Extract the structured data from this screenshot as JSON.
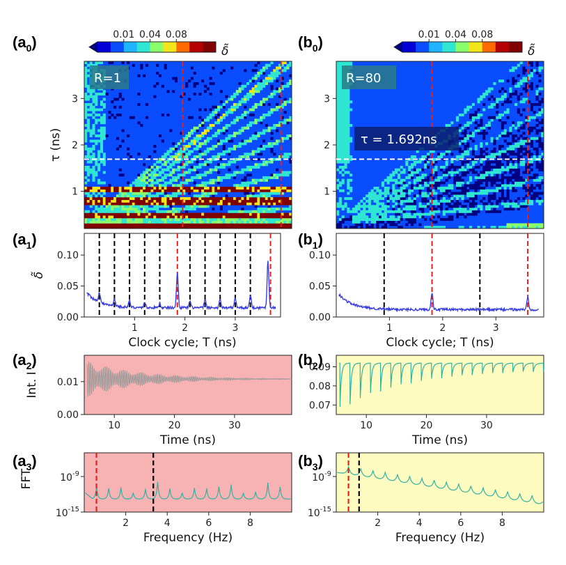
{
  "panel_labels": {
    "a0": {
      "main": "(a",
      "sub": "0",
      "close": ")"
    },
    "b0": {
      "main": "(b",
      "sub": "0",
      "close": ")"
    },
    "a1": {
      "main": "(a",
      "sub": "1",
      "close": ")"
    },
    "b1": {
      "main": "(b",
      "sub": "1",
      "close": ")"
    },
    "a2": {
      "main": "(a",
      "sub": "2",
      "close": ")"
    },
    "b2": {
      "main": "(b",
      "sub": "2",
      "close": ")"
    },
    "a3": {
      "main": "(a",
      "sub": "3",
      "close": ")"
    },
    "b3": {
      "main": "(b",
      "sub": "3",
      "close": ")"
    }
  },
  "colorbar": {
    "ticks": [
      "0.01",
      "0.04",
      "0.08"
    ],
    "label": "δ̃",
    "colors": [
      "#000080",
      "#0000d6",
      "#0a4cff",
      "#1eb4ff",
      "#2ee6d2",
      "#8cff6c",
      "#f2e51c",
      "#ff6a00",
      "#b40000",
      "#800000"
    ]
  },
  "chart_data": [
    {
      "id": "a0",
      "type": "heatmap",
      "annotation": "R=1",
      "ylabel": "τ (ns)",
      "yticks": [
        "1",
        "2",
        "3"
      ],
      "ylim": [
        0.2,
        3.8
      ],
      "xlim": [
        0,
        3.9
      ],
      "red_dashed_x": [
        1.85,
        3.7
      ],
      "white_dashed_y": 1.692
    },
    {
      "id": "b0",
      "type": "heatmap",
      "annotation": "R=80",
      "annotation2": "τ = 1.692ns",
      "yticks": [
        "1",
        "2",
        "3"
      ],
      "ylim": [
        0.2,
        3.8
      ],
      "xlim": [
        0,
        3.9
      ],
      "red_dashed_x": [
        1.8,
        3.6
      ],
      "white_dashed_y": 1.692
    },
    {
      "id": "a1",
      "type": "line",
      "ylabel": "δ̃",
      "xlabel": "Clock cycle; T (ns)",
      "xticks": [
        "1",
        "2",
        "3"
      ],
      "yticks": [
        "0.00",
        "0.05",
        "0.10"
      ],
      "xlim": [
        0,
        3.9
      ],
      "ylim": [
        0,
        0.135
      ],
      "black_dashed_x": [
        0.3,
        0.6,
        0.9,
        1.2,
        1.5,
        2.1,
        2.4,
        2.7,
        3.0,
        3.3
      ],
      "red_dashed_x": [
        1.85,
        3.7
      ],
      "baseline": 0.015,
      "peaks": [
        {
          "x": 0.3,
          "h": 0.017
        },
        {
          "x": 0.6,
          "h": 0.012
        },
        {
          "x": 0.9,
          "h": 0.01
        },
        {
          "x": 1.2,
          "h": 0.008
        },
        {
          "x": 1.5,
          "h": 0.007
        },
        {
          "x": 1.85,
          "h": 0.056
        },
        {
          "x": 2.1,
          "h": 0.01
        },
        {
          "x": 2.4,
          "h": 0.013
        },
        {
          "x": 2.7,
          "h": 0.014
        },
        {
          "x": 3.0,
          "h": 0.015
        },
        {
          "x": 3.3,
          "h": 0.02
        },
        {
          "x": 3.65,
          "h": 0.075
        }
      ]
    },
    {
      "id": "b1",
      "type": "line",
      "xlabel": "Clock cycle; T (ns)",
      "xticks": [
        "1",
        "2",
        "3"
      ],
      "yticks": [
        "0.00",
        "0.05",
        "0.10"
      ],
      "xlim": [
        0,
        3.9
      ],
      "ylim": [
        0,
        0.135
      ],
      "black_dashed_x": [
        0.9,
        2.7
      ],
      "red_dashed_x": [
        1.8,
        3.6
      ],
      "baseline": 0.012,
      "peaks": [
        {
          "x": 1.8,
          "h": 0.028
        },
        {
          "x": 3.6,
          "h": 0.02
        }
      ]
    },
    {
      "id": "a2",
      "type": "line",
      "ylabel": "Int. I",
      "xlabel": "Time (ns)",
      "xticks": [
        "10",
        "20",
        "30"
      ],
      "yticks": [
        "0.00",
        "0.01"
      ],
      "xlim": [
        5,
        39.5
      ],
      "ylim": [
        0,
        0.018
      ],
      "background": "#f7b3b3",
      "mean": 0.0105,
      "amp0": 0.0055,
      "decay": 9.0,
      "period": 0.3
    },
    {
      "id": "b2",
      "type": "line",
      "xlabel": "Time (ns)",
      "xticks": [
        "10",
        "20",
        "30"
      ],
      "yticks": [
        "0.07",
        "0.08",
        "0.09"
      ],
      "xlim": [
        5,
        39.5
      ],
      "ylim": [
        0.065,
        0.096
      ],
      "background": "#fdfbbf",
      "baseline": 0.0905,
      "dip0": 0.022,
      "decay": 11.0,
      "period": 1.692
    },
    {
      "id": "a3",
      "type": "line",
      "ylabel": "FFT",
      "xlabel": "Frequency (Hz)",
      "xticks": [
        "2",
        "4",
        "6",
        "8"
      ],
      "yticks": [
        "10^-9",
        "10^-15"
      ],
      "xlim": [
        0,
        10
      ],
      "ylim": [
        -15,
        -5
      ],
      "background": "#f7b3b3",
      "red_dashed_x": [
        0.59
      ],
      "black_dashed_x": [
        3.33
      ]
    },
    {
      "id": "b3",
      "type": "line",
      "xlabel": "Frequency (Hz)",
      "xticks": [
        "2",
        "4",
        "6",
        "8"
      ],
      "yticks": [
        "10^-9",
        "10^-15"
      ],
      "xlim": [
        0,
        10
      ],
      "ylim": [
        -15,
        -5
      ],
      "background": "#fdfbbf",
      "red_dashed_x": [
        0.59
      ],
      "black_dashed_x": [
        1.1
      ]
    }
  ]
}
